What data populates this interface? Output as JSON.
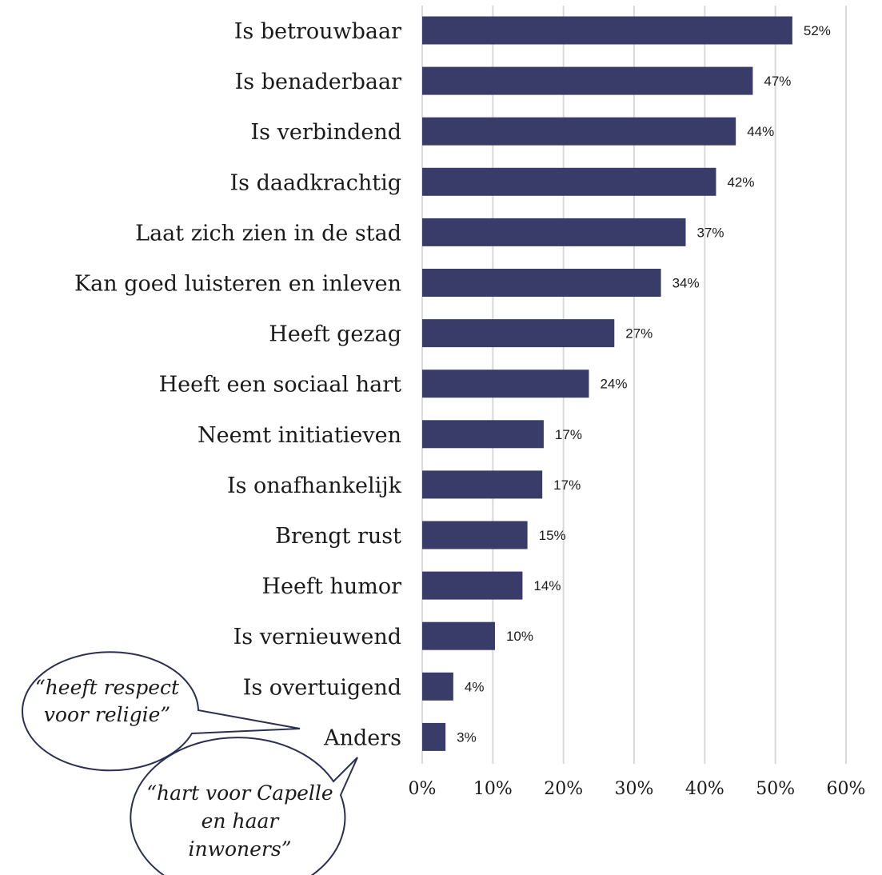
{
  "chart_data": {
    "type": "bar",
    "orientation": "horizontal",
    "categories": [
      "Is betrouwbaar",
      "Is benaderbaar",
      "Is verbindend",
      "Is daadkrachtig",
      "Laat zich zien in de stad",
      "Kan goed luisteren en inleven",
      "Heeft gezag",
      "Heeft een sociaal hart",
      "Neemt initiatieven",
      "Is onafhankelijk",
      "Brengt rust",
      "Heeft humor",
      "Is vernieuwend",
      "Is overtuigend",
      "Anders"
    ],
    "values": [
      52.4,
      46.8,
      44.4,
      41.6,
      37.3,
      33.8,
      27.2,
      23.6,
      17.2,
      17.0,
      14.9,
      14.2,
      10.3,
      4.4,
      3.3
    ],
    "data_labels": [
      "52%",
      "47%",
      "44%",
      "42%",
      "37%",
      "34%",
      "27%",
      "24%",
      "17%",
      "17%",
      "15%",
      "14%",
      "10%",
      "4%",
      "3%"
    ],
    "xlim": [
      0,
      60
    ],
    "x_ticks": [
      0,
      10,
      20,
      30,
      40,
      50,
      60
    ],
    "x_tick_labels": [
      "0%",
      "10%",
      "20%",
      "30%",
      "40%",
      "50%",
      "60%"
    ],
    "grid": "vertical",
    "bar_color": "#393c68",
    "title": "",
    "xlabel": "",
    "ylabel": "",
    "annotations": [
      {
        "lines": [
          "“heeft respect",
          "voor religie”"
        ]
      },
      {
        "lines": [
          "“hart voor Capelle",
          "en haar",
          "inwoners”"
        ]
      }
    ]
  }
}
